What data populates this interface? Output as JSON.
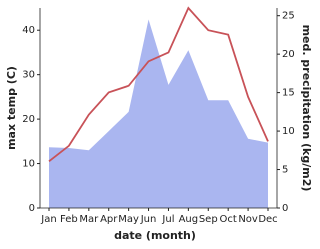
{
  "chart_data": {
    "type": "line",
    "x_label": "date (month)",
    "y_label": "max temp (C)",
    "y2_label": "med. precipitation (kg/m2)",
    "categories": [
      "Jan",
      "Feb",
      "Mar",
      "Apr",
      "May",
      "Jun",
      "Jul",
      "Aug",
      "Sep",
      "Oct",
      "Nov",
      "Dec"
    ],
    "ylim": [
      0,
      45
    ],
    "yticks": [
      0,
      10,
      20,
      30,
      40
    ],
    "y2lim": [
      0,
      26
    ],
    "y2ticks": [
      0,
      5,
      10,
      15,
      20,
      25
    ],
    "series": [
      {
        "name": "med. precipitation",
        "color": "#aab6f0",
        "axis": "y2",
        "fill": true,
        "values": [
          7.9,
          7.8,
          7.5,
          10,
          12.5,
          24.5,
          16,
          20.5,
          14,
          14,
          9,
          8.5
        ]
      },
      {
        "name": "max temp",
        "color": "#c85258",
        "values": [
          10.5,
          14,
          21,
          26,
          27.5,
          33,
          35,
          45,
          40,
          39,
          25,
          15
        ]
      }
    ]
  }
}
